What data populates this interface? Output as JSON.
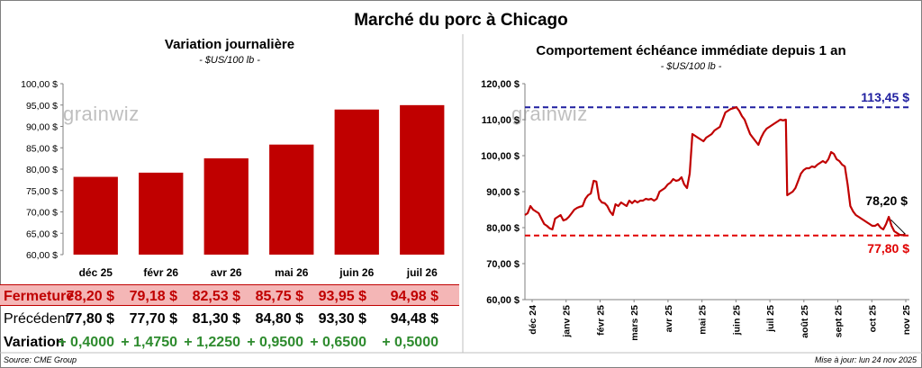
{
  "title": "Marché du porc à Chicago",
  "source": "Source: CME Group",
  "updated": "Mise à jour: lun 24 nov 2025",
  "watermark": "grainwiz",
  "colors": {
    "bar": "#c00000",
    "line": "#c00000",
    "hi_line": "#1f1fa0",
    "lo_line": "#e00000",
    "close_row": "#f4b6b6",
    "positive": "#2e8b2e"
  },
  "chart_data": [
    {
      "type": "bar",
      "title": "Variation journalière",
      "subtitle": "- $US/100 lb -",
      "categories": [
        "déc 25",
        "févr 26",
        "avr 26",
        "mai 26",
        "juin 26",
        "juil 26"
      ],
      "values": [
        78.2,
        79.18,
        82.53,
        85.75,
        93.95,
        94.98
      ],
      "ylim": [
        60,
        100
      ],
      "yticks": [
        "60,00 $",
        "65,00 $",
        "70,00 $",
        "75,00 $",
        "80,00 $",
        "85,00 $",
        "90,00 $",
        "95,00 $",
        "100,00 $"
      ],
      "grid": false,
      "table": {
        "rows": [
          {
            "label": "Fermeture",
            "values": [
              "78,20  $",
              "79,18  $",
              "82,53  $",
              "85,75  $",
              "93,95  $",
              "94,98  $"
            ]
          },
          {
            "label": "Précédent",
            "values": [
              "77,80  $",
              "77,70  $",
              "81,30  $",
              "84,80  $",
              "93,30  $",
              "94,48  $"
            ]
          },
          {
            "label": "Variation",
            "values": [
              "+ 0,4000",
              "+ 1,4750",
              "+ 1,2250",
              "+ 0,9500",
              "+ 0,6500",
              "+ 0,5000"
            ]
          }
        ]
      }
    },
    {
      "type": "line",
      "title": "Comportement échéance immédiate depuis 1 an",
      "subtitle": "- $US/100 lb -",
      "ylim": [
        60,
        120
      ],
      "yticks": [
        "60,00 $",
        "70,00 $",
        "80,00 $",
        "90,00 $",
        "100,00 $",
        "110,00 $",
        "120,00 $"
      ],
      "xticks": [
        "déc 24",
        "janv 25",
        "févr 25",
        "mars 25",
        "avr 25",
        "mai 25",
        "juin 25",
        "juil 25",
        "août 25",
        "sept 25",
        "oct 25",
        "nov 25"
      ],
      "hlines": [
        {
          "value": 113.45,
          "label": "113,45 $"
        },
        {
          "value": 77.8,
          "label": "77,80 $"
        }
      ],
      "last_label": "78,20 $",
      "series": [
        {
          "values": [
            [
              0,
              83.5
            ],
            [
              2,
              84
            ],
            [
              4,
              86
            ],
            [
              6,
              85
            ],
            [
              8,
              84.5
            ],
            [
              10,
              84
            ],
            [
              12,
              82.5
            ],
            [
              14,
              81
            ],
            [
              16,
              80.5
            ],
            [
              18,
              79.8
            ],
            [
              20,
              79.5
            ],
            [
              22,
              82.5
            ],
            [
              24,
              83
            ],
            [
              26,
              83.5
            ],
            [
              28,
              82
            ],
            [
              30,
              82.3
            ],
            [
              32,
              83
            ],
            [
              34,
              84
            ],
            [
              36,
              85
            ],
            [
              38,
              85.5
            ],
            [
              40,
              85.8
            ],
            [
              42,
              86
            ],
            [
              44,
              88
            ],
            [
              46,
              89
            ],
            [
              48,
              89.5
            ],
            [
              50,
              93
            ],
            [
              52,
              92.8
            ],
            [
              54,
              88
            ],
            [
              56,
              87
            ],
            [
              58,
              86.8
            ],
            [
              60,
              86
            ],
            [
              62,
              84.5
            ],
            [
              64,
              83.5
            ],
            [
              66,
              86.5
            ],
            [
              68,
              86
            ],
            [
              70,
              87
            ],
            [
              72,
              86.5
            ],
            [
              74,
              86
            ],
            [
              76,
              87.5
            ],
            [
              78,
              86.8
            ],
            [
              80,
              87.5
            ],
            [
              82,
              87
            ],
            [
              84,
              87.5
            ],
            [
              86,
              87.5
            ],
            [
              88,
              88
            ],
            [
              90,
              87.8
            ],
            [
              92,
              88
            ],
            [
              94,
              87.5
            ],
            [
              96,
              88
            ],
            [
              98,
              90
            ],
            [
              100,
              90.5
            ],
            [
              102,
              91
            ],
            [
              104,
              92
            ],
            [
              106,
              92.5
            ],
            [
              108,
              93.5
            ],
            [
              110,
              93
            ],
            [
              112,
              93.2
            ],
            [
              114,
              94
            ],
            [
              116,
              92
            ],
            [
              118,
              91
            ],
            [
              120,
              95
            ],
            [
              122,
              106
            ],
            [
              124,
              105.5
            ],
            [
              126,
              105
            ],
            [
              128,
              104.5
            ],
            [
              130,
              104
            ],
            [
              132,
              105
            ],
            [
              134,
              105.5
            ],
            [
              136,
              106
            ],
            [
              138,
              107
            ],
            [
              140,
              107.5
            ],
            [
              142,
              108
            ],
            [
              144,
              110
            ],
            [
              146,
              112
            ],
            [
              148,
              112.5
            ],
            [
              150,
              113
            ],
            [
              152,
              113.2
            ],
            [
              154,
              113.45
            ],
            [
              156,
              112.5
            ],
            [
              158,
              111
            ],
            [
              160,
              110
            ],
            [
              162,
              108
            ],
            [
              164,
              106
            ],
            [
              166,
              105
            ],
            [
              168,
              104
            ],
            [
              170,
              103
            ],
            [
              172,
              105
            ],
            [
              174,
              106.5
            ],
            [
              176,
              107.5
            ],
            [
              178,
              108
            ],
            [
              180,
              108.5
            ],
            [
              182,
              109
            ],
            [
              184,
              109.5
            ],
            [
              186,
              110
            ],
            [
              188,
              109.8
            ],
            [
              190,
              110
            ],
            [
              191,
              89
            ],
            [
              193,
              89.5
            ],
            [
              195,
              90
            ],
            [
              197,
              91
            ],
            [
              199,
              93
            ],
            [
              201,
              95
            ],
            [
              203,
              96
            ],
            [
              205,
              96.5
            ],
            [
              207,
              96.5
            ],
            [
              209,
              97
            ],
            [
              211,
              96.8
            ],
            [
              213,
              97.5
            ],
            [
              215,
              98
            ],
            [
              217,
              98.5
            ],
            [
              219,
              98
            ],
            [
              221,
              99
            ],
            [
              223,
              101
            ],
            [
              225,
              100.5
            ],
            [
              227,
              99
            ],
            [
              229,
              98.5
            ],
            [
              231,
              97.5
            ],
            [
              233,
              97
            ],
            [
              235,
              92
            ],
            [
              237,
              86
            ],
            [
              239,
              84.5
            ],
            [
              241,
              83.5
            ],
            [
              243,
              83
            ],
            [
              245,
              82.5
            ],
            [
              247,
              82
            ],
            [
              249,
              81.5
            ],
            [
              251,
              81
            ],
            [
              253,
              80.5
            ],
            [
              255,
              80.5
            ],
            [
              257,
              81
            ],
            [
              259,
              80
            ],
            [
              261,
              79.5
            ],
            [
              263,
              81
            ],
            [
              265,
              83
            ],
            [
              267,
              80.5
            ],
            [
              269,
              79
            ],
            [
              271,
              78.5
            ],
            [
              273,
              78
            ],
            [
              275,
              77.9
            ],
            [
              277,
              78.2
            ]
          ]
        }
      ],
      "x_max": 280
    }
  ]
}
